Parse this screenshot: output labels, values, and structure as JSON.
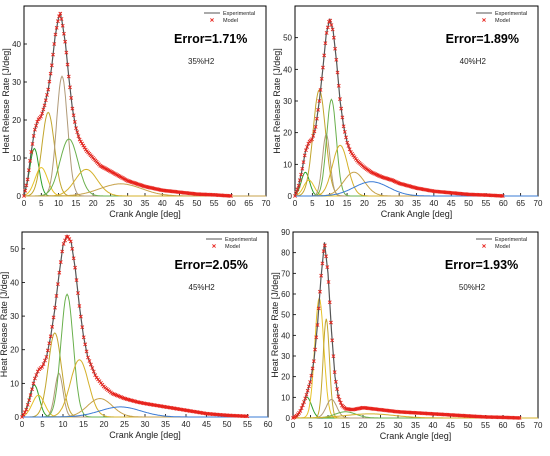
{
  "colors": {
    "experimental": "#555555",
    "model": "#e8231c",
    "components": [
      "#2ca02c",
      "#e6c229",
      "#c2a52c",
      "#b09a78",
      "#6ab04c",
      "#d4b02a",
      "#c7a24a",
      "#3a7bd5",
      "#9fa42c"
    ]
  },
  "chart_data": [
    {
      "type": "line",
      "xlabel": "Crank Angle [deg]",
      "ylabel": "Heat Release Rate [J/deg]",
      "xlim": [
        0,
        70
      ],
      "ylim": [
        0,
        50
      ],
      "xticks": [
        0,
        5,
        10,
        15,
        20,
        25,
        30,
        35,
        40,
        45,
        50,
        55,
        60,
        65,
        70
      ],
      "yticks": [
        0,
        10,
        20,
        30,
        40
      ],
      "legend": [
        "Experimental",
        "Model"
      ],
      "legend_position": "top-right",
      "error_label": "Error=1.71%",
      "case_label": "35%H2",
      "series": [
        {
          "name": "Experimental",
          "x": [
            0,
            1,
            2,
            3,
            4,
            5,
            6,
            7,
            8,
            9,
            10,
            10.5,
            11,
            12,
            13,
            14,
            15,
            16,
            18,
            20,
            22,
            25,
            28,
            30,
            35,
            40,
            45,
            50,
            55,
            60
          ],
          "y": [
            0,
            4,
            11,
            17,
            20,
            21,
            24,
            28,
            34,
            42,
            47,
            48,
            46,
            40,
            31,
            23,
            18,
            15,
            12,
            10,
            8,
            6.5,
            5,
            4,
            2.5,
            1.5,
            1,
            0.5,
            0.3,
            0
          ]
        },
        {
          "name": "Model",
          "x": [
            0,
            1,
            2,
            3,
            4,
            5,
            6,
            7,
            8,
            9,
            10,
            10.5,
            11,
            12,
            13,
            14,
            15,
            16,
            18,
            20,
            22,
            25,
            28,
            30,
            35,
            40,
            45,
            50,
            55,
            60
          ],
          "y": [
            0,
            4,
            11,
            17,
            20,
            21,
            24,
            28,
            34,
            42,
            47,
            48,
            46,
            40,
            31,
            23,
            18,
            15,
            12,
            10,
            8,
            6.5,
            5,
            4,
            2.5,
            1.5,
            1,
            0.5,
            0.3,
            0
          ]
        }
      ],
      "components": [
        {
          "center": 3,
          "peak": 12.5,
          "width": 1.3
        },
        {
          "center": 5,
          "peak": 7.5,
          "width": 1.8
        },
        {
          "center": 7,
          "peak": 22,
          "width": 1.8
        },
        {
          "center": 11,
          "peak": 31.5,
          "width": 1.6
        },
        {
          "center": 13,
          "peak": 15,
          "width": 2.6
        },
        {
          "center": 18,
          "peak": 7,
          "width": 3.2
        },
        {
          "center": 28,
          "peak": 3.2,
          "width": 6
        }
      ]
    },
    {
      "type": "line",
      "xlabel": "Crank Angle [deg]",
      "ylabel": "Heat Release Rate [J/deg]",
      "xlim": [
        0,
        70
      ],
      "ylim": [
        0,
        60
      ],
      "xticks": [
        0,
        5,
        10,
        15,
        20,
        25,
        30,
        35,
        40,
        45,
        50,
        55,
        60,
        65,
        70
      ],
      "yticks": [
        0,
        10,
        20,
        30,
        40,
        50
      ],
      "legend": [
        "Experimental",
        "Model"
      ],
      "legend_position": "top-right",
      "error_label": "Error=1.89%",
      "case_label": "40%H2",
      "series": [
        {
          "name": "Experimental",
          "x": [
            0,
            1,
            2,
            3,
            4,
            5,
            6,
            7,
            8,
            9,
            10,
            11,
            12,
            13,
            14,
            15,
            16,
            18,
            20,
            22,
            25,
            28,
            30,
            35,
            40,
            45,
            50,
            55,
            60
          ],
          "y": [
            0,
            3,
            8,
            14,
            17,
            18,
            22,
            30,
            40,
            51,
            56,
            52,
            42,
            30,
            22,
            17,
            14,
            11,
            9,
            7.5,
            6,
            5,
            4,
            2.5,
            1.5,
            1,
            0.5,
            0.3,
            0
          ]
        },
        {
          "name": "Model",
          "x": [
            0,
            1,
            2,
            3,
            4,
            5,
            6,
            7,
            8,
            9,
            10,
            11,
            12,
            13,
            14,
            15,
            16,
            18,
            20,
            22,
            25,
            28,
            30,
            35,
            40,
            45,
            50,
            55,
            60
          ],
          "y": [
            0,
            3,
            8,
            14,
            17,
            18,
            22,
            30,
            40,
            51,
            56,
            52,
            42,
            30,
            22,
            17,
            14,
            11,
            9,
            7.5,
            6,
            5,
            4,
            2.5,
            1.5,
            1,
            0.5,
            0.3,
            0
          ]
        }
      ],
      "components": [
        {
          "center": 3,
          "peak": 7.5,
          "width": 1.2
        },
        {
          "center": 4,
          "peak": 5,
          "width": 1.5
        },
        {
          "center": 7,
          "peak": 33.5,
          "width": 1.8
        },
        {
          "center": 9,
          "peak": 19.5,
          "width": 1.1
        },
        {
          "center": 10.5,
          "peak": 30.5,
          "width": 1.4
        },
        {
          "center": 13,
          "peak": 16,
          "width": 2.2
        },
        {
          "center": 17,
          "peak": 7.5,
          "width": 3
        },
        {
          "center": 22,
          "peak": 4.5,
          "width": 5
        }
      ]
    },
    {
      "type": "line",
      "xlabel": "Crank Angle [deg]",
      "ylabel": "Heat Release Rate [J/deg]",
      "xlim": [
        0,
        60
      ],
      "ylim": [
        0,
        55
      ],
      "xticks": [
        0,
        5,
        10,
        15,
        20,
        25,
        30,
        35,
        40,
        45,
        50,
        55,
        60
      ],
      "yticks": [
        0,
        10,
        20,
        30,
        40,
        50
      ],
      "legend": [
        "Experimental",
        "Model"
      ],
      "legend_position": "top-right",
      "error_label": "Error=2.05%",
      "case_label": "45%H2",
      "series": [
        {
          "name": "Experimental",
          "x": [
            0,
            1,
            2,
            3,
            4,
            5,
            6,
            7,
            8,
            9,
            10,
            11,
            12,
            13,
            14,
            15,
            16,
            18,
            20,
            22,
            25,
            28,
            30,
            35,
            40,
            45,
            50,
            55
          ],
          "y": [
            0,
            2,
            6,
            11,
            14,
            15,
            18,
            24,
            32,
            42,
            51,
            54,
            52,
            44,
            33,
            24,
            18,
            12,
            9,
            7,
            5.5,
            4.5,
            4,
            3,
            2,
            1,
            0.5,
            0.2
          ]
        },
        {
          "name": "Model",
          "x": [
            0,
            1,
            2,
            3,
            4,
            5,
            6,
            7,
            8,
            9,
            10,
            11,
            12,
            13,
            14,
            15,
            16,
            18,
            20,
            22,
            25,
            28,
            30,
            35,
            40,
            45,
            50,
            55
          ],
          "y": [
            0,
            2,
            6,
            11,
            14,
            15,
            18,
            24,
            32,
            42,
            51,
            54,
            52,
            44,
            33,
            24,
            18,
            12,
            9,
            7,
            5.5,
            4.5,
            4,
            3,
            2,
            1,
            0.5,
            0.2
          ]
        }
      ],
      "components": [
        {
          "center": 3,
          "peak": 9.5,
          "width": 1.2
        },
        {
          "center": 4,
          "peak": 6.5,
          "width": 1.5
        },
        {
          "center": 8,
          "peak": 25,
          "width": 1.6
        },
        {
          "center": 9,
          "peak": 13,
          "width": 1
        },
        {
          "center": 11,
          "peak": 36.5,
          "width": 1.5
        },
        {
          "center": 14,
          "peak": 17,
          "width": 2.2
        },
        {
          "center": 19,
          "peak": 5.5,
          "width": 3
        },
        {
          "center": 24,
          "peak": 3,
          "width": 5
        }
      ]
    },
    {
      "type": "line",
      "xlabel": "Crank Angle [deg]",
      "ylabel": "Heat Release Rate [J/deg]",
      "xlim": [
        0,
        70
      ],
      "ylim": [
        0,
        90
      ],
      "xticks": [
        0,
        5,
        10,
        15,
        20,
        25,
        30,
        35,
        40,
        45,
        50,
        55,
        60,
        65,
        70
      ],
      "yticks": [
        0,
        10,
        20,
        30,
        40,
        50,
        60,
        70,
        80,
        90
      ],
      "legend": [
        "Experimental",
        "Model"
      ],
      "legend_position": "top-right",
      "error_label": "Error=1.93%",
      "case_label": "50%H2",
      "series": [
        {
          "name": "Experimental",
          "x": [
            0,
            1,
            2,
            3,
            4,
            5,
            6,
            7,
            8,
            9,
            10,
            11,
            12,
            13,
            14,
            15,
            17,
            20,
            25,
            30,
            35,
            40,
            45,
            50,
            55,
            60,
            65
          ],
          "y": [
            0,
            1,
            3,
            7,
            12,
            18,
            28,
            45,
            68,
            85,
            70,
            42,
            20,
            10,
            6,
            4.5,
            4,
            5,
            4,
            3,
            2.5,
            2,
            1.5,
            1,
            0.5,
            0.3,
            0
          ]
        },
        {
          "name": "Model",
          "x": [
            0,
            1,
            2,
            3,
            4,
            5,
            6,
            7,
            8,
            9,
            10,
            11,
            12,
            13,
            14,
            15,
            17,
            20,
            25,
            30,
            35,
            40,
            45,
            50,
            55,
            60,
            65
          ],
          "y": [
            0,
            1,
            3,
            7,
            12,
            18,
            28,
            45,
            68,
            85,
            70,
            42,
            20,
            10,
            6,
            4.5,
            4,
            5,
            4,
            3,
            2.5,
            2,
            1.5,
            1,
            0.5,
            0.3,
            0
          ]
        }
      ],
      "components": [
        {
          "center": 4,
          "peak": 10,
          "width": 1.3
        },
        {
          "center": 7.5,
          "peak": 58,
          "width": 1.3
        },
        {
          "center": 9.5,
          "peak": 48,
          "width": 0.9
        },
        {
          "center": 11,
          "peak": 9,
          "width": 1.5
        },
        {
          "center": 15,
          "peak": 3,
          "width": 3
        },
        {
          "center": 22,
          "peak": 2,
          "width": 7
        }
      ]
    }
  ]
}
